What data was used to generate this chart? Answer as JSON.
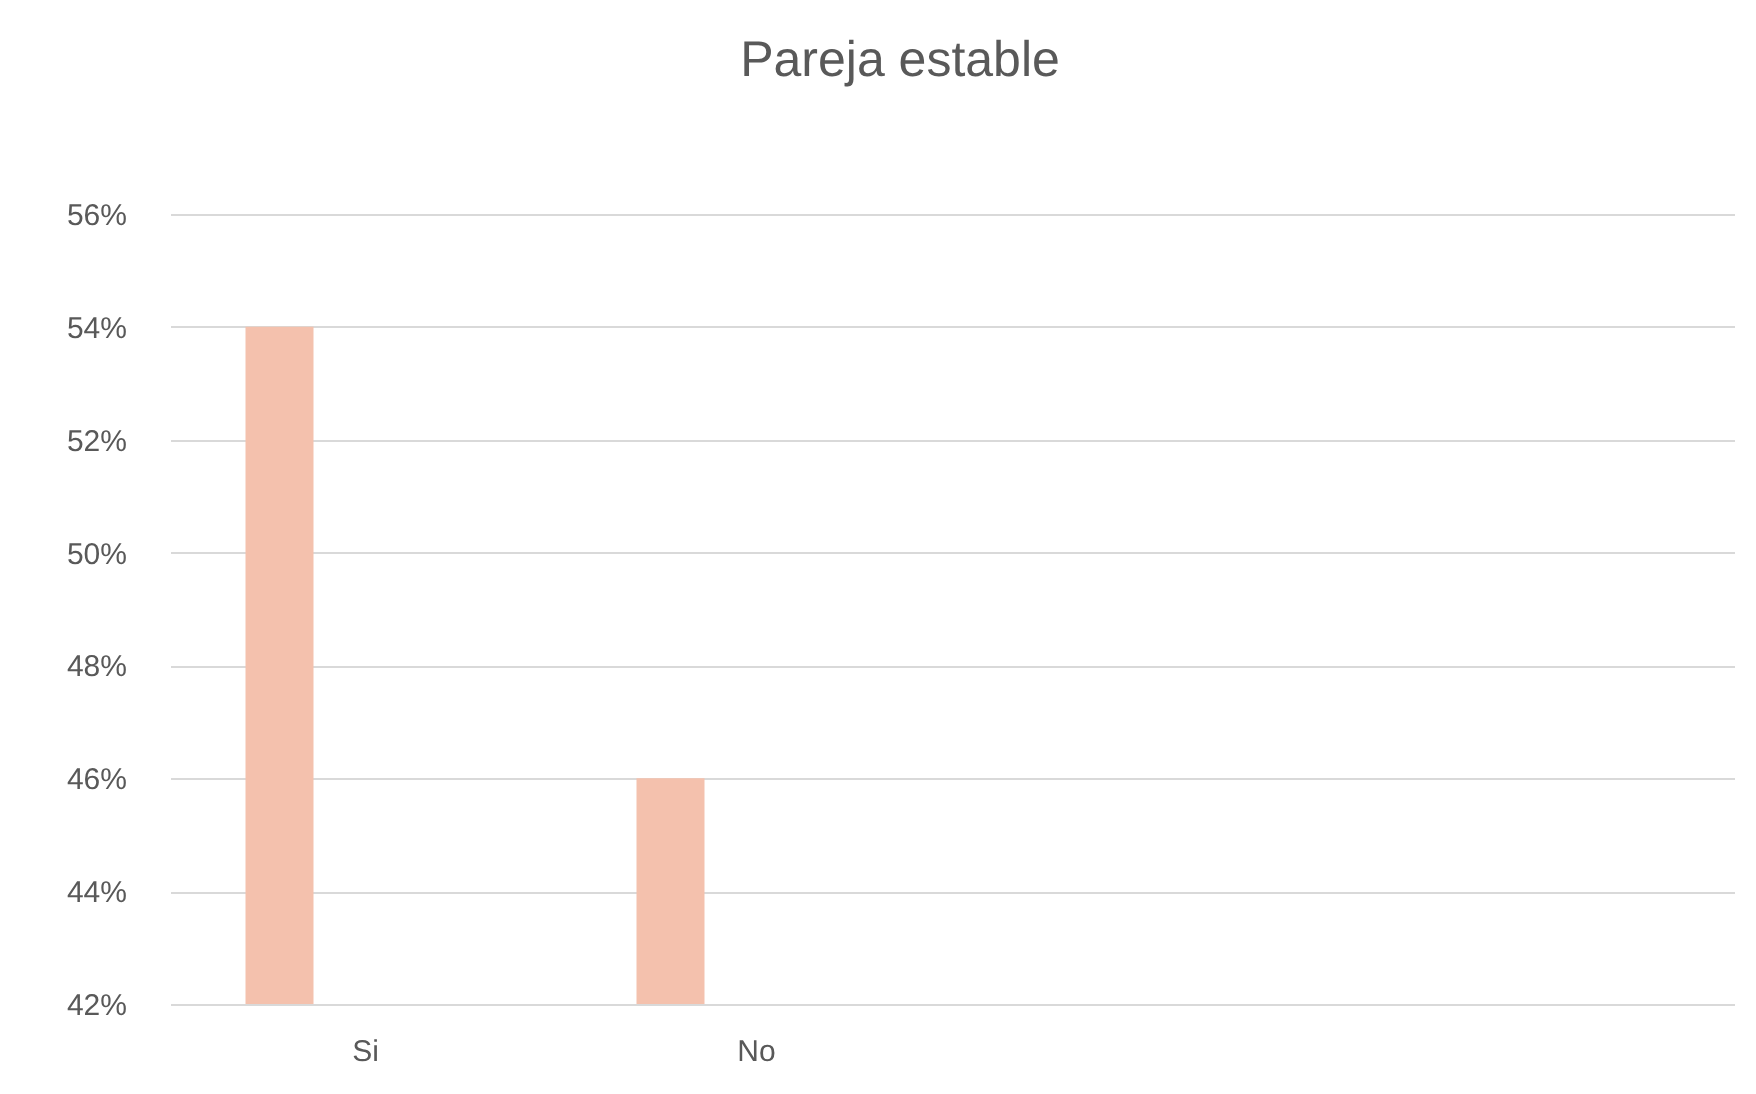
{
  "chart_data": {
    "type": "bar",
    "title": "Pareja estable",
    "categories": [
      "Si",
      "No",
      null,
      null
    ],
    "values": [
      54,
      46,
      null,
      null
    ],
    "color": "#f4c1ad",
    "ylim": [
      42,
      56
    ],
    "yticks": [
      {
        "value": 42,
        "label": "42%"
      },
      {
        "value": 44,
        "label": "44%"
      },
      {
        "value": 46,
        "label": "46%"
      },
      {
        "value": 48,
        "label": "48%"
      },
      {
        "value": 50,
        "label": "50%"
      },
      {
        "value": 52,
        "label": "52%"
      },
      {
        "value": 54,
        "label": "54%"
      },
      {
        "value": 56,
        "label": "56%"
      }
    ],
    "grid": "y"
  }
}
